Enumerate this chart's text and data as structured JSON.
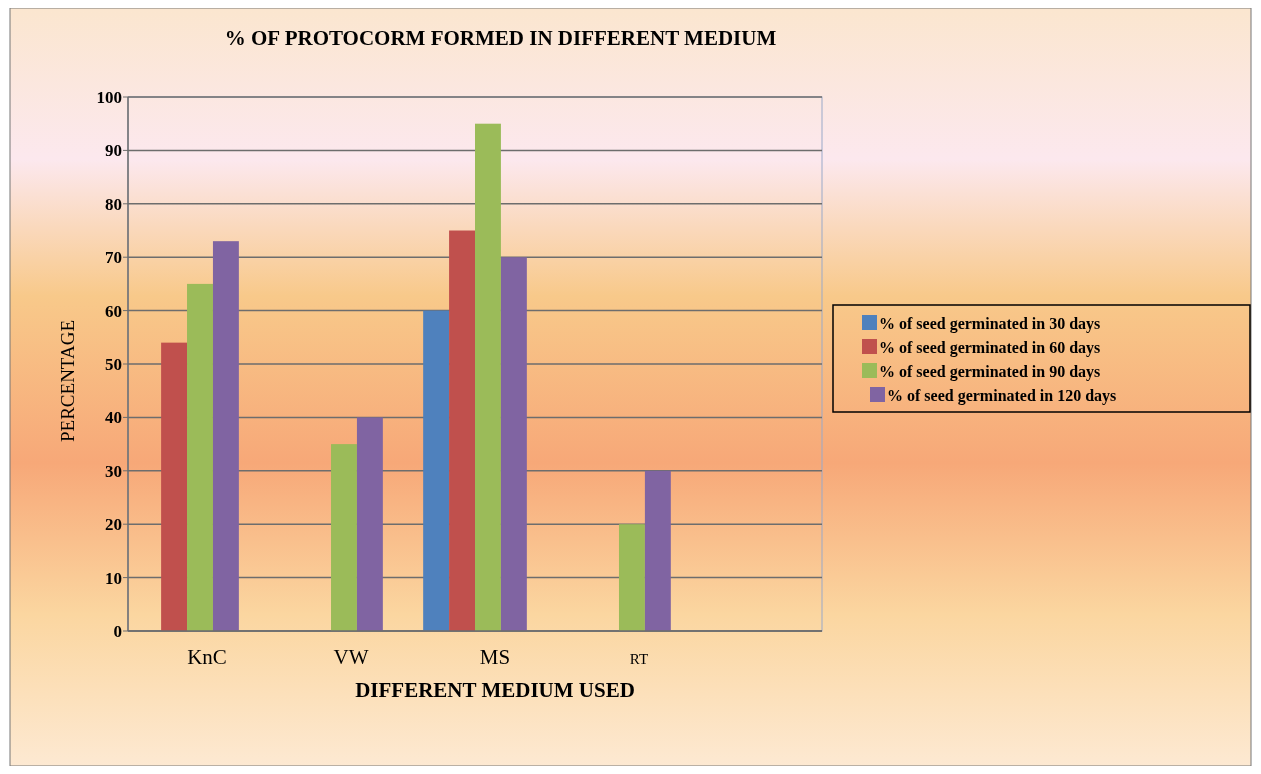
{
  "chart_data": {
    "type": "bar",
    "title": "% OF PROTOCORM FORMED IN DIFFERENT MEDIUM",
    "xlabel": "DIFFERENT MEDIUM USED",
    "ylabel": "PERCENTAGE",
    "categories": [
      "KnC",
      "VW",
      "MS",
      "RT",
      null
    ],
    "series": [
      {
        "name": "% of seed germinated in 30 days",
        "color": "#4f81bd",
        "values": [
          null,
          null,
          60,
          null,
          null
        ]
      },
      {
        "name": "% of seed germinated in 60 days",
        "color": "#c0504d",
        "values": [
          54,
          null,
          75,
          null,
          null
        ]
      },
      {
        "name": "% of seed germinated in 90 days",
        "color": "#9bbb59",
        "values": [
          65,
          35,
          95,
          20,
          null
        ]
      },
      {
        "name": "% of seed germinated in 120 days",
        "color": "#8064a2",
        "values": [
          73,
          40,
          70,
          30,
          null
        ]
      }
    ],
    "ylim": [
      0,
      100
    ],
    "yticks": [
      0,
      10,
      20,
      30,
      40,
      50,
      60,
      70,
      80,
      90,
      100
    ],
    "grid": "y",
    "legend": "right"
  }
}
